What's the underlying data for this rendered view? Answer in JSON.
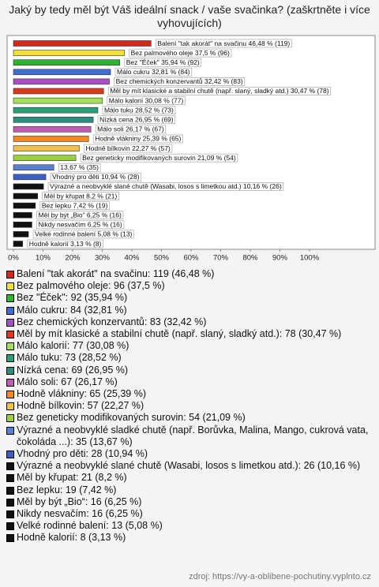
{
  "chart_data": {
    "type": "barh",
    "title": "Jaký by tedy měl být Váš ideální snack / vaše svačinka? (zaškrtněte i více vyhovujících)",
    "values": [
      46.48,
      37.5,
      35.94,
      32.81,
      32.42,
      30.47,
      30.08,
      28.52,
      26.95,
      26.17,
      25.39,
      22.27,
      21.09,
      13.67,
      10.94,
      10.16,
      8.2,
      7.42,
      6.25,
      6.25,
      5.08,
      3.13
    ],
    "value_labels": [
      "Balení \"tak akorát\" na svačinu 46,48 % (119)",
      "Bez palmového oleje 37,5 % (96)",
      "Bez \"Éček\" 35,94 % (92)",
      "Málo cukru 32,81 % (84)",
      "Bez chemických konzervantů 32,42 % (83)",
      "Měl by mít klasické a stabilní chutě (např. slaný, sladký atd.) 30,47 % (78)",
      "Málo kalorií 30,08 % (77)",
      "Málo tuku 28,52 % (73)",
      "Nízká cena 26,95 % (69)",
      "Málo soli 26,17 % (67)",
      "Hodně vlákniny 25,39 % (65)",
      "Hodně bílkovin 22,27 % (57)",
      "Bez geneticky modifikovaných surovin 21,09 % (54)",
      "13,67 % (35)",
      "Vhodný pro děti 10,94 % (28)",
      "Výrazné a neobvyklé slané chutě (Wasabi, losos s limetkou atd.) 10,16 % (26)",
      "Měl by křupat 8,2 % (21)",
      "Bez lepku 7,42 % (19)",
      "Měl by být „Bio“ 6,25 % (16)",
      "Nikdy nesvačím 6,25 % (16)",
      "Velké rodinné balení 5,08 % (13)",
      "Hodně kalorií 3,13 % (8)"
    ],
    "legend": [
      "Balení \"tak akorát\" na svačinu: 119 (46,48 %)",
      "Bez palmového oleje: 96 (37,5 %)",
      "Bez \"Éček\": 92 (35,94 %)",
      "Málo cukru: 84 (32,81 %)",
      "Bez chemických konzervantů: 83 (32,42 %)",
      "Měl by mít klasické a stabilní chutě (např. slaný, sladký atd.): 78 (30,47 %)",
      "Málo kalorií: 77 (30,08 %)",
      "Málo tuku: 73 (28,52 %)",
      "Nízká cena: 69 (26,95 %)",
      "Málo soli: 67 (26,17 %)",
      "Hodně vlákniny: 65 (25,39 %)",
      "Hodně bílkovin: 57 (22,27 %)",
      "Bez geneticky modifikovaných surovin: 54 (21,09 %)",
      "Výrazné a neobvyklé sladké chutě (např. Borůvka, Malina, Mango, cukrová vata, čokoláda ...): 35 (13,67 %)",
      "Vhodný pro děti: 28 (10,94 %)",
      "Výrazné a neobvyklé slané chutě (Wasabi, losos s limetkou atd.): 26 (10,16 %)",
      "Měl by křupat: 21 (8,2 %)",
      "Bez lepku: 19 (7,42 %)",
      "Měl by být „Bio“: 16 (6,25 %)",
      "Nikdy nesvačím: 16 (6,25 %)",
      "Velké rodinné balení: 13 (5,08 %)",
      "Hodně kalorií: 8 (3,13 %)"
    ],
    "colors": [
      "#d4281c",
      "#f2e034",
      "#2cb52c",
      "#3e6ed0",
      "#a94fc4",
      "#d83a1c",
      "#a4e05a",
      "#2a9e78",
      "#2b8f7e",
      "#c25cb2",
      "#f08a20",
      "#f5c04a",
      "#98d040",
      "#5b7fd0",
      "#3a60c4",
      "#111111",
      "#111111",
      "#111111",
      "#111111",
      "#111111",
      "#111111",
      "#111111"
    ],
    "xlim": [
      0,
      100
    ],
    "xticks": [
      {
        "value": 0,
        "label": "0%"
      },
      {
        "value": 10,
        "label": "10%"
      },
      {
        "value": 20,
        "label": "20%"
      },
      {
        "value": 30,
        "label": "30%"
      },
      {
        "value": 40,
        "label": "40%"
      },
      {
        "value": 50,
        "label": "50%"
      },
      {
        "value": 60,
        "label": "60%"
      },
      {
        "value": 70,
        "label": "70%"
      },
      {
        "value": 80,
        "label": "80%"
      },
      {
        "value": 90,
        "label": "90%"
      },
      {
        "value": 100,
        "label": "100%"
      }
    ],
    "source": "zdroj: https://vy-a-oblibene-pochutiny.vyplnto.cz"
  }
}
